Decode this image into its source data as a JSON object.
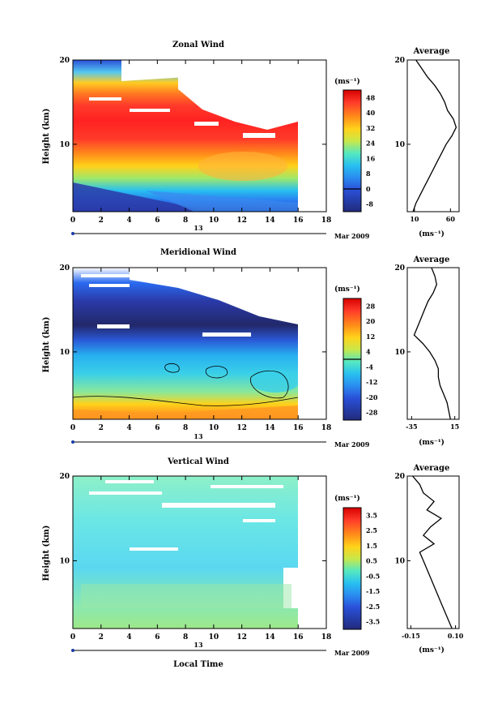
{
  "xaxis": {
    "ticks": [
      0,
      2,
      4,
      6,
      8,
      10,
      12,
      14,
      16,
      18
    ],
    "day_label": "13",
    "date_label": "Mar 2009",
    "title": "Local Time"
  },
  "chart_data": [
    {
      "type": "heatmap",
      "title": "Zonal Wind",
      "ylabel": "Height (km)",
      "yticks": [
        10,
        20
      ],
      "ylim": [
        2,
        20
      ],
      "xlim": [
        0,
        18
      ],
      "data_extent_x": [
        0,
        16
      ],
      "colorbar": {
        "unit": "(ms⁻¹)",
        "labels": [
          "48",
          "40",
          "32",
          "24",
          "16",
          "8",
          "0",
          "-8"
        ],
        "contour_value": "0"
      },
      "avg_panel": {
        "title": "Average",
        "xlabel": "(ms⁻¹)",
        "xticks": [
          "10",
          "60"
        ],
        "xlim": [
          0,
          72
        ],
        "yticks": [
          10,
          20
        ],
        "ylim": [
          2,
          20
        ],
        "profile": {
          "heights": [
            2,
            3,
            4,
            5,
            6,
            7,
            8,
            9,
            10,
            11,
            12,
            13,
            14,
            15,
            16,
            17,
            18,
            19,
            20
          ],
          "values": [
            8,
            12,
            18,
            24,
            30,
            36,
            42,
            48,
            54,
            62,
            68,
            64,
            56,
            52,
            46,
            38,
            28,
            20,
            12
          ]
        }
      }
    },
    {
      "type": "heatmap",
      "title": "Meridional Wind",
      "ylabel": "Height (km)",
      "yticks": [
        10,
        20
      ],
      "ylim": [
        2,
        20
      ],
      "xlim": [
        0,
        18
      ],
      "data_extent_x": [
        0,
        16
      ],
      "colorbar": {
        "unit": "(ms⁻¹)",
        "labels": [
          "28",
          "20",
          "12",
          "4",
          "-4",
          "-12",
          "-20",
          "-28"
        ],
        "contour_value": "0"
      },
      "avg_panel": {
        "title": "Average",
        "xlabel": "(ms⁻¹)",
        "xticks": [
          "-35",
          "15"
        ],
        "xlim": [
          -40,
          20
        ],
        "yticks": [
          10,
          20
        ],
        "ylim": [
          2,
          20
        ],
        "profile": {
          "heights": [
            2,
            3,
            4,
            5,
            6,
            7,
            8,
            9,
            10,
            11,
            12,
            13,
            14,
            15,
            16,
            17,
            18,
            19,
            20
          ],
          "values": [
            10,
            8,
            6,
            2,
            -2,
            -4,
            -4,
            -8,
            -14,
            -22,
            -32,
            -28,
            -24,
            -20,
            -16,
            -10,
            -6,
            -8,
            -12
          ]
        }
      }
    },
    {
      "type": "heatmap",
      "title": "Vertical Wind",
      "ylabel": "Height (km)",
      "yticks": [
        10,
        20
      ],
      "ylim": [
        2,
        20
      ],
      "xlim": [
        0,
        18
      ],
      "data_extent_x": [
        0,
        16
      ],
      "colorbar": {
        "unit": "(ms⁻¹)",
        "labels": [
          "3.5",
          "2.5",
          "1.5",
          "0.5",
          "-0.5",
          "-1.5",
          "-2.5",
          "-3.5"
        ]
      },
      "avg_panel": {
        "title": "Average",
        "xlabel": "(ms⁻¹)",
        "xticks": [
          "-0.15",
          "0.10"
        ],
        "xlim": [
          -0.17,
          0.12
        ],
        "yticks": [
          10,
          20
        ],
        "ylim": [
          2,
          20
        ],
        "profile": {
          "heights": [
            2,
            3,
            4,
            5,
            6,
            7,
            8,
            9,
            10,
            11,
            12,
            13,
            14,
            15,
            16,
            17,
            18,
            19,
            20
          ],
          "values": [
            0.08,
            0.06,
            0.04,
            0.02,
            0.0,
            -0.02,
            -0.04,
            -0.06,
            -0.08,
            -0.1,
            -0.02,
            -0.08,
            -0.04,
            0.02,
            -0.06,
            -0.02,
            -0.08,
            -0.1,
            -0.14
          ]
        }
      }
    }
  ]
}
